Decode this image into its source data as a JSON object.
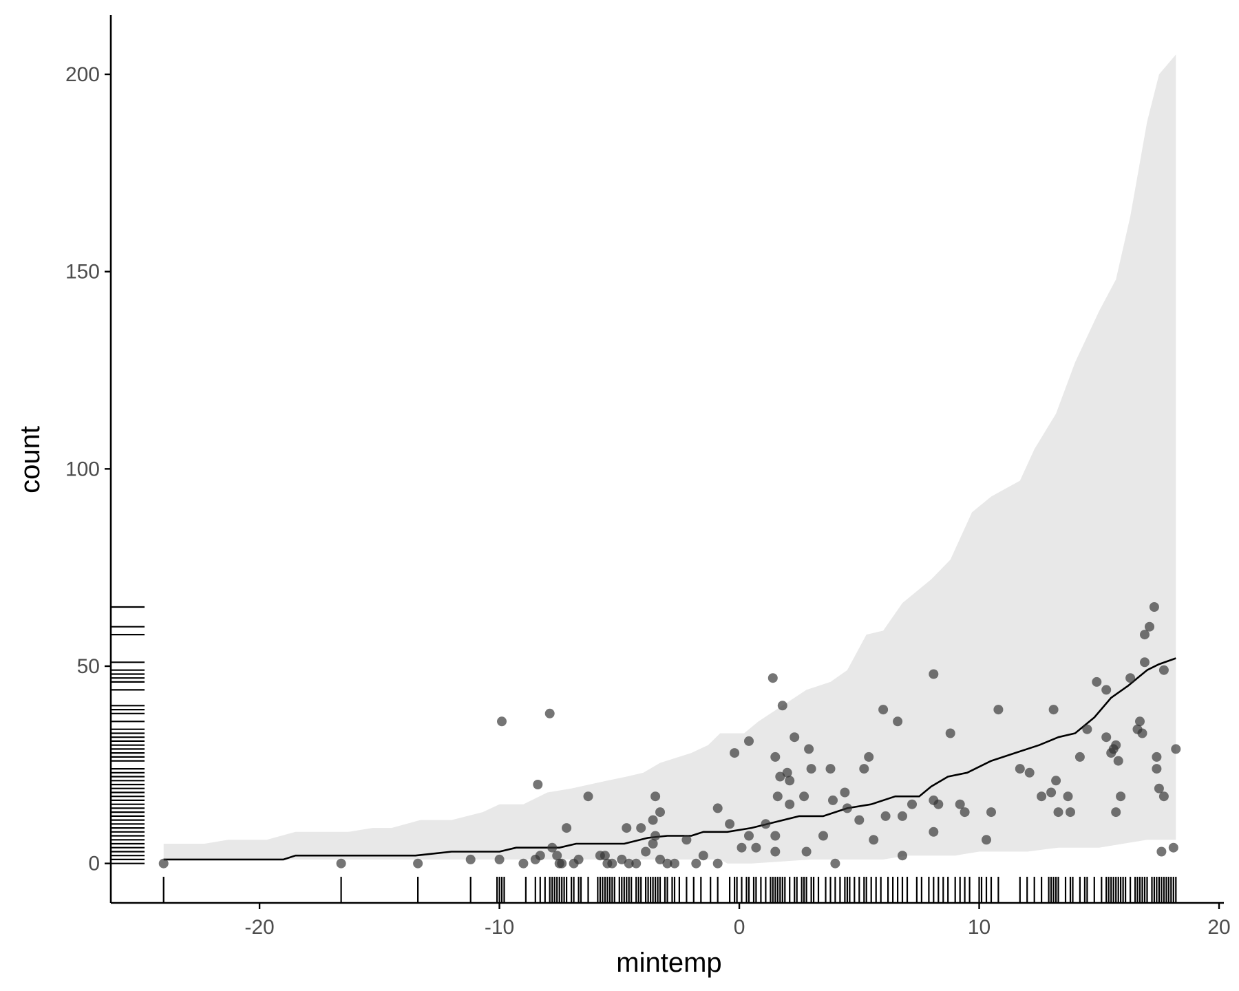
{
  "chart_data": {
    "type": "scatter",
    "title": "",
    "xlabel": "mintemp",
    "ylabel": "count",
    "xlim": [
      -26.2,
      20.2
    ],
    "ylim": [
      -10,
      215
    ],
    "x_ticks": [
      -20,
      -10,
      0,
      10,
      20
    ],
    "x_tick_labels": [
      "-20",
      "-10",
      "0",
      "10",
      "20"
    ],
    "y_ticks": [
      0,
      50,
      100,
      150,
      200
    ],
    "y_tick_labels": [
      "0",
      "50",
      "100",
      "150",
      "200"
    ],
    "grid": false,
    "colors": {
      "points": "#333333",
      "band": "#e8e8e8",
      "line": "#000000",
      "axis": "#000000",
      "tick_label": "#4d4d4d"
    },
    "points": [
      [
        -24.0,
        0
      ],
      [
        -16.6,
        0
      ],
      [
        -13.4,
        0
      ],
      [
        -11.2,
        1
      ],
      [
        -10.0,
        1
      ],
      [
        -9.9,
        36
      ],
      [
        -9.0,
        0
      ],
      [
        -8.5,
        1
      ],
      [
        -8.4,
        20
      ],
      [
        -8.3,
        2
      ],
      [
        -7.9,
        38
      ],
      [
        -7.8,
        4
      ],
      [
        -7.6,
        2
      ],
      [
        -7.5,
        0
      ],
      [
        -7.4,
        0
      ],
      [
        -7.2,
        9
      ],
      [
        -6.9,
        0
      ],
      [
        -6.7,
        1
      ],
      [
        -6.3,
        17
      ],
      [
        -5.8,
        2
      ],
      [
        -5.6,
        2
      ],
      [
        -5.5,
        0
      ],
      [
        -5.3,
        0
      ],
      [
        -4.9,
        1
      ],
      [
        -4.7,
        9
      ],
      [
        -4.6,
        0
      ],
      [
        -4.3,
        0
      ],
      [
        -4.1,
        9
      ],
      [
        -3.9,
        3
      ],
      [
        -3.6,
        5
      ],
      [
        -3.6,
        11
      ],
      [
        -3.5,
        17
      ],
      [
        -3.5,
        7
      ],
      [
        -3.3,
        13
      ],
      [
        -3.3,
        1
      ],
      [
        -3.0,
        0
      ],
      [
        -2.7,
        0
      ],
      [
        -2.2,
        6
      ],
      [
        -1.8,
        0
      ],
      [
        -1.5,
        2
      ],
      [
        -0.9,
        14
      ],
      [
        -0.9,
        0
      ],
      [
        -0.4,
        10
      ],
      [
        -0.2,
        28
      ],
      [
        0.1,
        4
      ],
      [
        0.4,
        7
      ],
      [
        0.4,
        31
      ],
      [
        0.7,
        4
      ],
      [
        1.1,
        10
      ],
      [
        1.4,
        47
      ],
      [
        1.5,
        27
      ],
      [
        1.5,
        3
      ],
      [
        1.5,
        7
      ],
      [
        1.6,
        17
      ],
      [
        1.7,
        22
      ],
      [
        1.8,
        40
      ],
      [
        2.0,
        23
      ],
      [
        2.1,
        21
      ],
      [
        2.1,
        15
      ],
      [
        2.3,
        32
      ],
      [
        2.7,
        17
      ],
      [
        2.8,
        3
      ],
      [
        2.9,
        29
      ],
      [
        3.0,
        24
      ],
      [
        3.5,
        7
      ],
      [
        3.8,
        24
      ],
      [
        3.9,
        16
      ],
      [
        4.0,
        0
      ],
      [
        4.4,
        18
      ],
      [
        4.5,
        14
      ],
      [
        5.0,
        11
      ],
      [
        5.2,
        24
      ],
      [
        5.4,
        27
      ],
      [
        5.6,
        6
      ],
      [
        6.0,
        39
      ],
      [
        6.1,
        12
      ],
      [
        6.6,
        36
      ],
      [
        6.8,
        2
      ],
      [
        6.8,
        12
      ],
      [
        7.2,
        15
      ],
      [
        8.1,
        48
      ],
      [
        8.1,
        16
      ],
      [
        8.1,
        8
      ],
      [
        8.3,
        15
      ],
      [
        8.8,
        33
      ],
      [
        9.2,
        15
      ],
      [
        9.4,
        13
      ],
      [
        10.3,
        6
      ],
      [
        10.5,
        13
      ],
      [
        10.8,
        39
      ],
      [
        11.7,
        24
      ],
      [
        12.1,
        23
      ],
      [
        12.6,
        17
      ],
      [
        13.0,
        18
      ],
      [
        13.1,
        39
      ],
      [
        13.2,
        21
      ],
      [
        13.3,
        13
      ],
      [
        13.7,
        17
      ],
      [
        13.8,
        13
      ],
      [
        14.2,
        27
      ],
      [
        14.5,
        34
      ],
      [
        14.9,
        46
      ],
      [
        15.3,
        44
      ],
      [
        15.3,
        32
      ],
      [
        15.5,
        28
      ],
      [
        15.6,
        29
      ],
      [
        15.7,
        13
      ],
      [
        15.7,
        30
      ],
      [
        15.8,
        26
      ],
      [
        15.9,
        17
      ],
      [
        16.3,
        47
      ],
      [
        16.6,
        34
      ],
      [
        16.7,
        36
      ],
      [
        16.8,
        33
      ],
      [
        16.9,
        51
      ],
      [
        16.9,
        58
      ],
      [
        17.1,
        60
      ],
      [
        17.3,
        65
      ],
      [
        17.4,
        27
      ],
      [
        17.4,
        24
      ],
      [
        17.5,
        19
      ],
      [
        17.6,
        3
      ],
      [
        17.7,
        17
      ],
      [
        17.7,
        49
      ],
      [
        18.1,
        4
      ],
      [
        18.2,
        29
      ]
    ],
    "trend_line": [
      [
        -24.0,
        1
      ],
      [
        -19.0,
        1
      ],
      [
        -18.5,
        2
      ],
      [
        -13.5,
        2
      ],
      [
        -12.0,
        3
      ],
      [
        -10.0,
        3
      ],
      [
        -9.3,
        4
      ],
      [
        -7.5,
        4
      ],
      [
        -6.8,
        5
      ],
      [
        -4.8,
        5
      ],
      [
        -3.8,
        6.5
      ],
      [
        -3.0,
        7
      ],
      [
        -2.0,
        7
      ],
      [
        -1.5,
        8
      ],
      [
        -0.5,
        8
      ],
      [
        0.5,
        9
      ],
      [
        1.5,
        10.5
      ],
      [
        2.5,
        12
      ],
      [
        3.5,
        12
      ],
      [
        4.5,
        14
      ],
      [
        5.5,
        15
      ],
      [
        6.5,
        17
      ],
      [
        7.5,
        17
      ],
      [
        8.0,
        19.5
      ],
      [
        8.7,
        22
      ],
      [
        9.5,
        23
      ],
      [
        10.5,
        26
      ],
      [
        11.5,
        28
      ],
      [
        12.5,
        30
      ],
      [
        13.3,
        32
      ],
      [
        14.0,
        33
      ],
      [
        14.8,
        37
      ],
      [
        15.5,
        42
      ],
      [
        16.2,
        45
      ],
      [
        17.0,
        49
      ],
      [
        17.5,
        50.5
      ],
      [
        18.2,
        52
      ]
    ],
    "band_upper": [
      [
        -24.0,
        5
      ],
      [
        -22.3,
        5
      ],
      [
        -21.3,
        6
      ],
      [
        -19.7,
        6
      ],
      [
        -18.5,
        8
      ],
      [
        -16.3,
        8
      ],
      [
        -15.3,
        9
      ],
      [
        -14.5,
        9
      ],
      [
        -13.3,
        11
      ],
      [
        -12.0,
        11
      ],
      [
        -10.7,
        13
      ],
      [
        -10.0,
        15
      ],
      [
        -9.0,
        15
      ],
      [
        -8.0,
        18
      ],
      [
        -7.0,
        19
      ],
      [
        -5.5,
        21
      ],
      [
        -4.7,
        22
      ],
      [
        -4.0,
        23
      ],
      [
        -3.3,
        25.5
      ],
      [
        -2.0,
        28
      ],
      [
        -1.3,
        30
      ],
      [
        -0.8,
        33
      ],
      [
        0.2,
        33
      ],
      [
        0.8,
        36
      ],
      [
        1.8,
        40
      ],
      [
        2.8,
        44
      ],
      [
        3.8,
        46
      ],
      [
        4.5,
        49
      ],
      [
        5.3,
        58
      ],
      [
        6.0,
        59
      ],
      [
        6.8,
        66
      ],
      [
        8.0,
        72
      ],
      [
        8.8,
        77
      ],
      [
        9.7,
        89
      ],
      [
        10.5,
        93
      ],
      [
        11.7,
        97
      ],
      [
        12.3,
        105
      ],
      [
        13.2,
        114
      ],
      [
        14.0,
        127
      ],
      [
        15.0,
        140
      ],
      [
        15.7,
        148
      ],
      [
        16.3,
        164
      ],
      [
        17.0,
        188
      ],
      [
        17.5,
        200
      ],
      [
        18.2,
        205
      ]
    ],
    "band_lower": [
      [
        18.2,
        6
      ],
      [
        17.0,
        6
      ],
      [
        16.0,
        5
      ],
      [
        15.0,
        4
      ],
      [
        13.3,
        4
      ],
      [
        12.0,
        3
      ],
      [
        11.0,
        3
      ],
      [
        10.0,
        3
      ],
      [
        9.0,
        2
      ],
      [
        7.0,
        2
      ],
      [
        6.0,
        1
      ],
      [
        3.0,
        1
      ],
      [
        0.5,
        0
      ],
      [
        -0.5,
        0
      ],
      [
        -0.8,
        1
      ],
      [
        -24.0,
        1
      ]
    ],
    "rug_x": [
      -24.0,
      -16.6,
      -13.4,
      -11.2,
      -10.1,
      -10.0,
      -9.9,
      -9.8,
      -8.9,
      -8.5,
      -8.3,
      -8.1,
      -7.9,
      -7.8,
      -7.7,
      -7.6,
      -7.5,
      -7.4,
      -7.3,
      -7.2,
      -7.0,
      -6.9,
      -6.7,
      -6.6,
      -6.3,
      -5.9,
      -5.8,
      -5.7,
      -5.6,
      -5.5,
      -5.4,
      -5.3,
      -5.2,
      -5.0,
      -4.9,
      -4.8,
      -4.7,
      -4.6,
      -4.5,
      -4.3,
      -4.2,
      -4.1,
      -3.9,
      -3.8,
      -3.7,
      -3.6,
      -3.5,
      -3.4,
      -3.3,
      -3.1,
      -3.0,
      -2.8,
      -2.7,
      -2.5,
      -2.2,
      -1.9,
      -1.6,
      -1.2,
      -0.9,
      -0.4,
      -0.2,
      -0.1,
      0.1,
      0.3,
      0.4,
      0.6,
      0.7,
      0.9,
      1.1,
      1.3,
      1.4,
      1.5,
      1.6,
      1.7,
      1.8,
      1.9,
      2.1,
      2.3,
      2.4,
      2.6,
      2.7,
      2.8,
      3.0,
      3.1,
      3.3,
      3.6,
      3.8,
      4.0,
      4.2,
      4.4,
      4.5,
      4.6,
      4.8,
      5.0,
      5.2,
      5.3,
      5.5,
      5.7,
      5.9,
      6.2,
      6.4,
      6.6,
      6.8,
      7.0,
      7.4,
      7.6,
      7.9,
      8.1,
      8.3,
      8.5,
      8.7,
      9.0,
      9.2,
      9.4,
      9.6,
      10.0,
      10.1,
      10.3,
      10.5,
      10.8,
      11.7,
      12.0,
      12.3,
      12.6,
      12.9,
      13.0,
      13.1,
      13.2,
      13.3,
      13.6,
      13.8,
      13.9,
      14.2,
      14.4,
      14.5,
      14.8,
      15.1,
      15.3,
      15.4,
      15.5,
      15.6,
      15.7,
      15.8,
      15.9,
      16.0,
      16.1,
      16.3,
      16.5,
      16.6,
      16.7,
      16.8,
      16.9,
      17.0,
      17.2,
      17.3,
      17.4,
      17.5,
      17.6,
      17.7,
      17.8,
      17.9,
      18.0,
      18.1,
      18.2
    ],
    "rug_y": [
      0,
      1,
      2,
      3,
      4,
      5,
      6,
      7,
      8,
      9,
      10,
      11,
      12,
      13,
      14,
      15,
      16,
      17,
      18,
      19,
      20,
      21,
      22,
      23,
      24,
      26,
      27,
      28,
      29,
      30,
      31,
      32,
      33,
      34,
      36,
      38,
      39,
      40,
      44,
      46,
      47,
      48,
      49,
      51,
      58,
      60,
      65
    ]
  }
}
